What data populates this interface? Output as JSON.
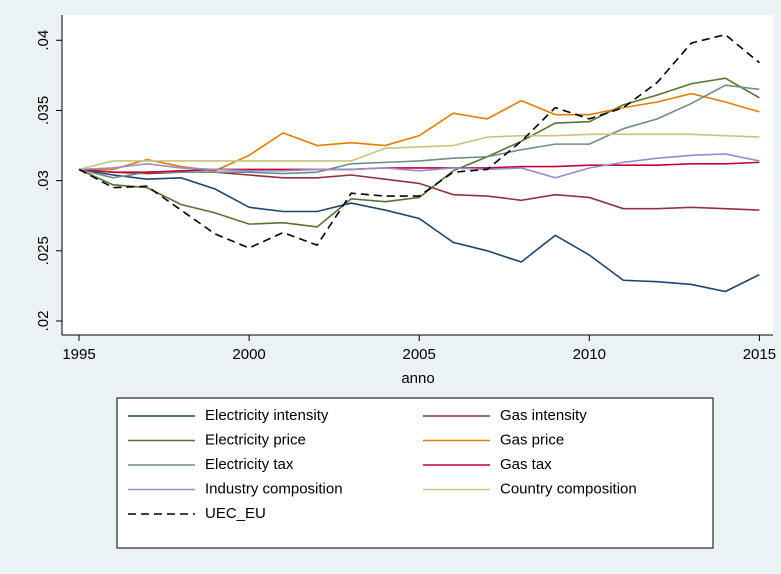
{
  "chart_data": {
    "type": "line",
    "xlabel": "anno",
    "x": [
      1995,
      1996,
      1997,
      1998,
      1999,
      2000,
      2001,
      2002,
      2003,
      2004,
      2005,
      2006,
      2007,
      2008,
      2009,
      2010,
      2011,
      2012,
      2013,
      2014,
      2015
    ],
    "xlim": [
      1994.5,
      2015.4
    ],
    "xticks": [
      1995,
      2000,
      2005,
      2010,
      2015
    ],
    "ylim": [
      0.019,
      0.0418
    ],
    "yticks": [
      {
        "value": 0.02,
        "label": ".02"
      },
      {
        "value": 0.025,
        "label": ".025"
      },
      {
        "value": 0.03,
        "label": ".03"
      },
      {
        "value": 0.035,
        "label": ".035"
      },
      {
        "value": 0.04,
        "label": ".04"
      }
    ],
    "grid": false,
    "legend": "bottom",
    "series": [
      {
        "name": "Electricity intensity",
        "color": "#1a476f",
        "values": [
          0.0308,
          0.0304,
          0.0301,
          0.0302,
          0.0294,
          0.0281,
          0.0278,
          0.0278,
          0.0284,
          0.0279,
          0.0273,
          0.0256,
          0.025,
          0.0242,
          0.0261,
          0.0247,
          0.0229,
          0.0228,
          0.0226,
          0.0221,
          0.0233
        ]
      },
      {
        "name": "Gas intensity",
        "color": "#90353b",
        "values": [
          0.0308,
          0.0306,
          0.0305,
          0.0306,
          0.0306,
          0.0304,
          0.0302,
          0.0302,
          0.0304,
          0.0301,
          0.0298,
          0.029,
          0.0289,
          0.0286,
          0.029,
          0.0288,
          0.028,
          0.028,
          0.0281,
          0.028,
          0.0279
        ]
      },
      {
        "name": "Electricity price",
        "color": "#55752f",
        "values": [
          0.0308,
          0.0297,
          0.0295,
          0.0283,
          0.0277,
          0.0269,
          0.027,
          0.0267,
          0.0287,
          0.0285,
          0.0288,
          0.0307,
          0.0317,
          0.0328,
          0.0341,
          0.0342,
          0.0354,
          0.0361,
          0.0369,
          0.0373,
          0.0359
        ]
      },
      {
        "name": "Gas price",
        "color": "#e37e00",
        "values": [
          0.0308,
          0.0308,
          0.0315,
          0.031,
          0.0307,
          0.0318,
          0.0334,
          0.0325,
          0.0327,
          0.0325,
          0.0332,
          0.0348,
          0.0344,
          0.0357,
          0.0347,
          0.0347,
          0.0352,
          0.0356,
          0.0362,
          0.0356,
          0.0349
        ]
      },
      {
        "name": "Electricity tax",
        "color": "#6e8e84",
        "values": [
          0.0308,
          0.0302,
          0.0306,
          0.0306,
          0.0306,
          0.0306,
          0.0305,
          0.0306,
          0.0312,
          0.0313,
          0.0314,
          0.0316,
          0.0317,
          0.0322,
          0.0326,
          0.0326,
          0.0337,
          0.0344,
          0.0355,
          0.0368,
          0.0365
        ]
      },
      {
        "name": "Gas tax",
        "color": "#c10534",
        "values": [
          0.0308,
          0.0306,
          0.0306,
          0.0307,
          0.0308,
          0.0308,
          0.0308,
          0.0308,
          0.0308,
          0.0309,
          0.0309,
          0.0309,
          0.0309,
          0.031,
          0.031,
          0.0311,
          0.0311,
          0.0311,
          0.0312,
          0.0312,
          0.0313
        ]
      },
      {
        "name": "Industry composition",
        "color": "#938dd2",
        "values": [
          0.0308,
          0.0309,
          0.0312,
          0.0309,
          0.0308,
          0.0307,
          0.0307,
          0.0308,
          0.0308,
          0.0309,
          0.0307,
          0.0309,
          0.0308,
          0.0309,
          0.0302,
          0.0309,
          0.0313,
          0.0316,
          0.0318,
          0.0319,
          0.0314
        ]
      },
      {
        "name": "Country composition",
        "color": "#cac27e",
        "values": [
          0.0308,
          0.0314,
          0.0314,
          0.0314,
          0.0314,
          0.0314,
          0.0314,
          0.0314,
          0.0314,
          0.0323,
          0.0324,
          0.0325,
          0.0331,
          0.0332,
          0.0332,
          0.0333,
          0.0333,
          0.0333,
          0.0333,
          0.0332,
          0.0331
        ]
      },
      {
        "name": "UEC_EU",
        "color": "#000000",
        "dashed": true,
        "values": [
          0.0308,
          0.0295,
          0.0296,
          0.0279,
          0.0262,
          0.0252,
          0.0263,
          0.0254,
          0.0291,
          0.0289,
          0.0289,
          0.0306,
          0.0308,
          0.0328,
          0.0352,
          0.0344,
          0.0352,
          0.037,
          0.0398,
          0.0404,
          0.0384
        ]
      }
    ]
  }
}
